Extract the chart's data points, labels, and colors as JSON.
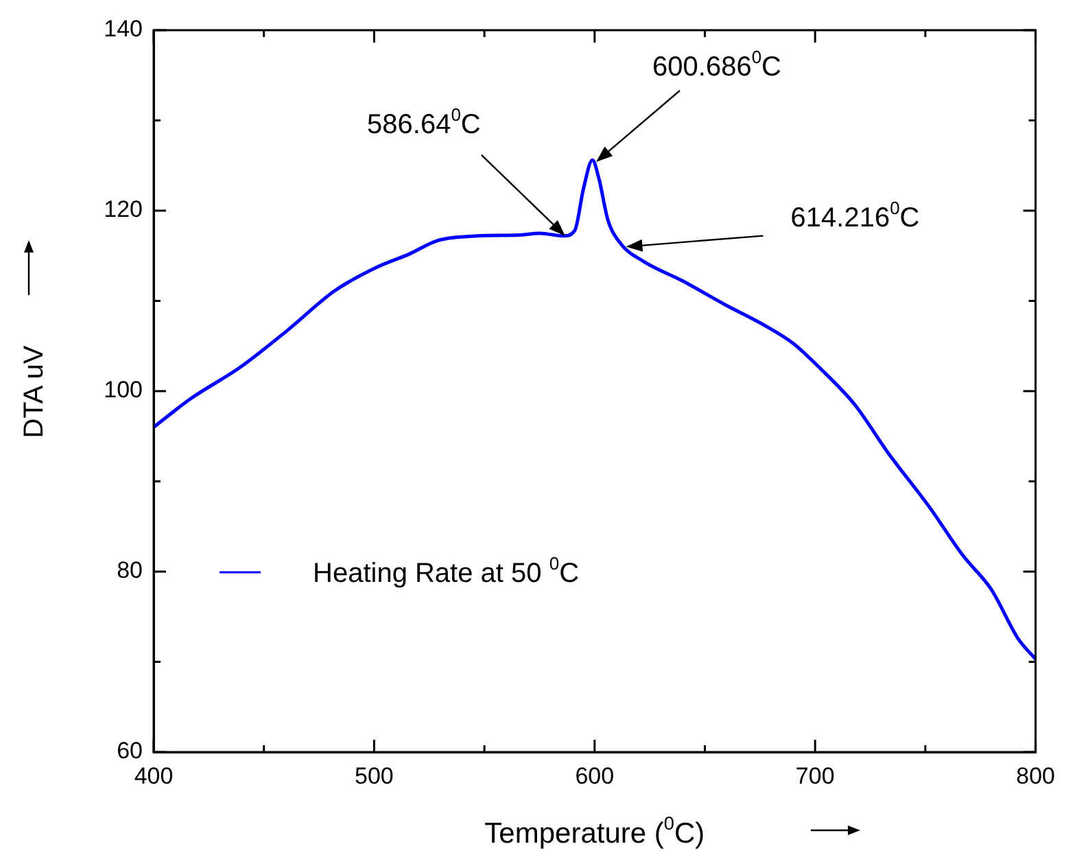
{
  "chart_data": {
    "type": "line",
    "xlabel": "Temperature ($^{0}$C)",
    "ylabel": "DTA uV",
    "legend": "center left",
    "grid": false,
    "marker": "none",
    "line_style": "solid",
    "xlim": [
      400,
      800
    ],
    "ylim": [
      60,
      140
    ],
    "xticks": [
      400,
      {
        "value": 450,
        "label": null
      },
      500,
      {
        "value": 550,
        "label": null
      },
      600,
      {
        "value": 650,
        "label": null
      },
      700,
      {
        "value": 750,
        "label": null
      },
      800
    ],
    "yticks": [
      60,
      {
        "value": 70,
        "label": null
      },
      80,
      {
        "value": 90,
        "label": null
      },
      100,
      {
        "value": 110,
        "label": null
      },
      120,
      {
        "value": 130,
        "label": null
      },
      140
    ],
    "series": [
      {
        "name": "Heating Rate at 50 $^{0}$C",
        "color": "#0000ff",
        "x": [
          400,
          417,
          439,
          461,
          482,
          501,
          516,
          529,
          547,
          566,
          575,
          586,
          591,
          595,
          599,
          602,
          606,
          612,
          622,
          640,
          659,
          677,
          690,
          702,
          718,
          733,
          752,
          767,
          780,
          792,
          800
        ],
        "values": [
          96.0,
          99.2,
          102.6,
          106.8,
          111.1,
          113.7,
          115.2,
          116.7,
          117.2,
          117.3,
          117.5,
          117.2,
          117.8,
          122.5,
          125.6,
          123.5,
          119.0,
          116.3,
          114.4,
          112.2,
          109.6,
          107.3,
          105.3,
          102.6,
          98.5,
          93.2,
          87.1,
          81.8,
          78.0,
          72.6,
          70.3
        ]
      }
    ],
    "annotations": [
      {
        "text": "586.64$^{0}$C",
        "x": 586.64,
        "y": 117.2
      },
      {
        "text": "600.686$^{0}$C",
        "x": 600.686,
        "y": 125.4
      },
      {
        "text": "614.216$^{0}$C",
        "x": 614.216,
        "y": 116.0
      }
    ]
  }
}
